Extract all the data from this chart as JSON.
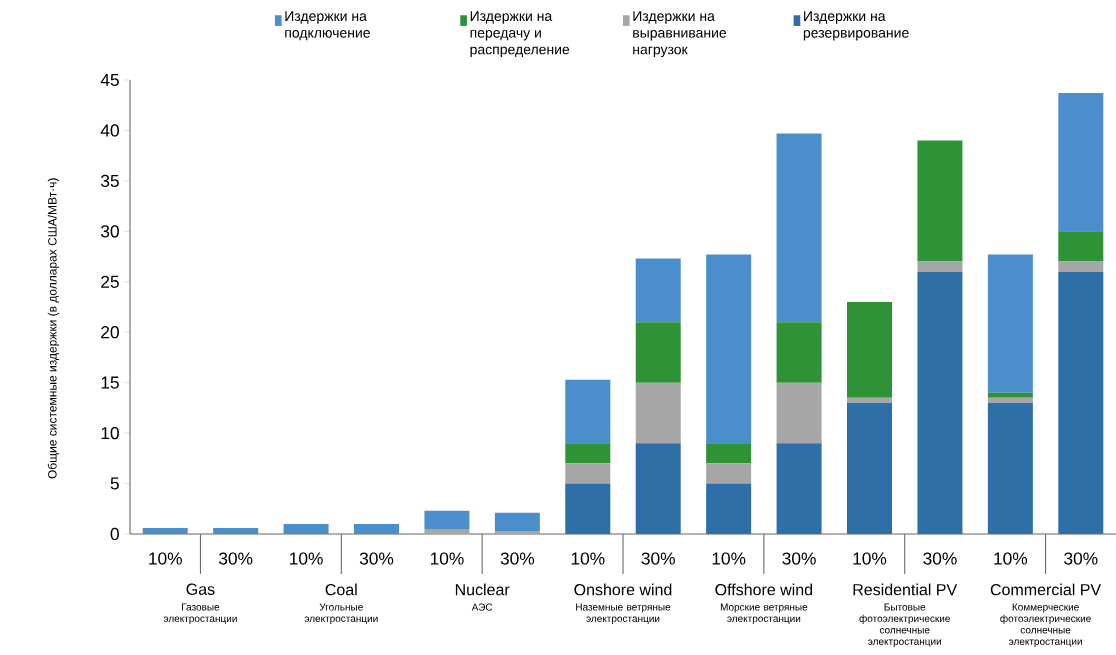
{
  "chart_data": {
    "type": "bar",
    "stacked": true,
    "ylabel": "Общие системные издержки (в долларах США/МВт·ч)",
    "categories": [
      "10%",
      "30%",
      "10%",
      "30%",
      "10%",
      "30%",
      "10%",
      "30%",
      "10%",
      "30%",
      "10%",
      "30%",
      "10%",
      "30%"
    ],
    "series": [
      {
        "name": "Издержки на резервирование",
        "color": "#2e6fa7",
        "values": [
          0,
          0,
          0,
          0,
          0,
          0,
          5,
          9,
          5,
          9,
          13,
          26,
          13,
          26
        ]
      },
      {
        "name": "Издержки на выравнивание нагрузок",
        "color": "#a6a6a6",
        "values": [
          0,
          0,
          0,
          0,
          0.5,
          0.3,
          2,
          6,
          2,
          6,
          0.5,
          1,
          0.5,
          1
        ]
      },
      {
        "name": "Издержки на передачу и распределение",
        "color": "#2e9236",
        "values": [
          0,
          0,
          0,
          0,
          0,
          0,
          2,
          6,
          2,
          6,
          9.5,
          12,
          0.5,
          3
        ]
      },
      {
        "name": "Издержки на подключение",
        "color": "#4a8fcc",
        "values": [
          0.6,
          0.6,
          1.0,
          1.0,
          1.8,
          1.8,
          6.3,
          6.3,
          18.7,
          18.7,
          0,
          0,
          13.7,
          13.7
        ]
      }
    ],
    "ylim": [
      0,
      45
    ],
    "yticks": [
      0,
      5,
      10,
      15,
      20,
      25,
      30,
      35,
      40,
      45
    ],
    "legend": "top",
    "grid": false,
    "annotations": [
      "Gas",
      "Coal",
      "Nuclear",
      "Onshore wind",
      "Offshore wind",
      "Residential PV",
      "Commercial PV",
      "Газовые электростанции",
      "Угольные электростанции",
      "АЭС",
      "Наземные ветряные электростанции",
      "Морские ветряные электростанции",
      "Бытовые фотоэлектрические солнечные электростанции",
      "Коммерческие фотоэлектрические солнечные электростанции"
    ]
  }
}
